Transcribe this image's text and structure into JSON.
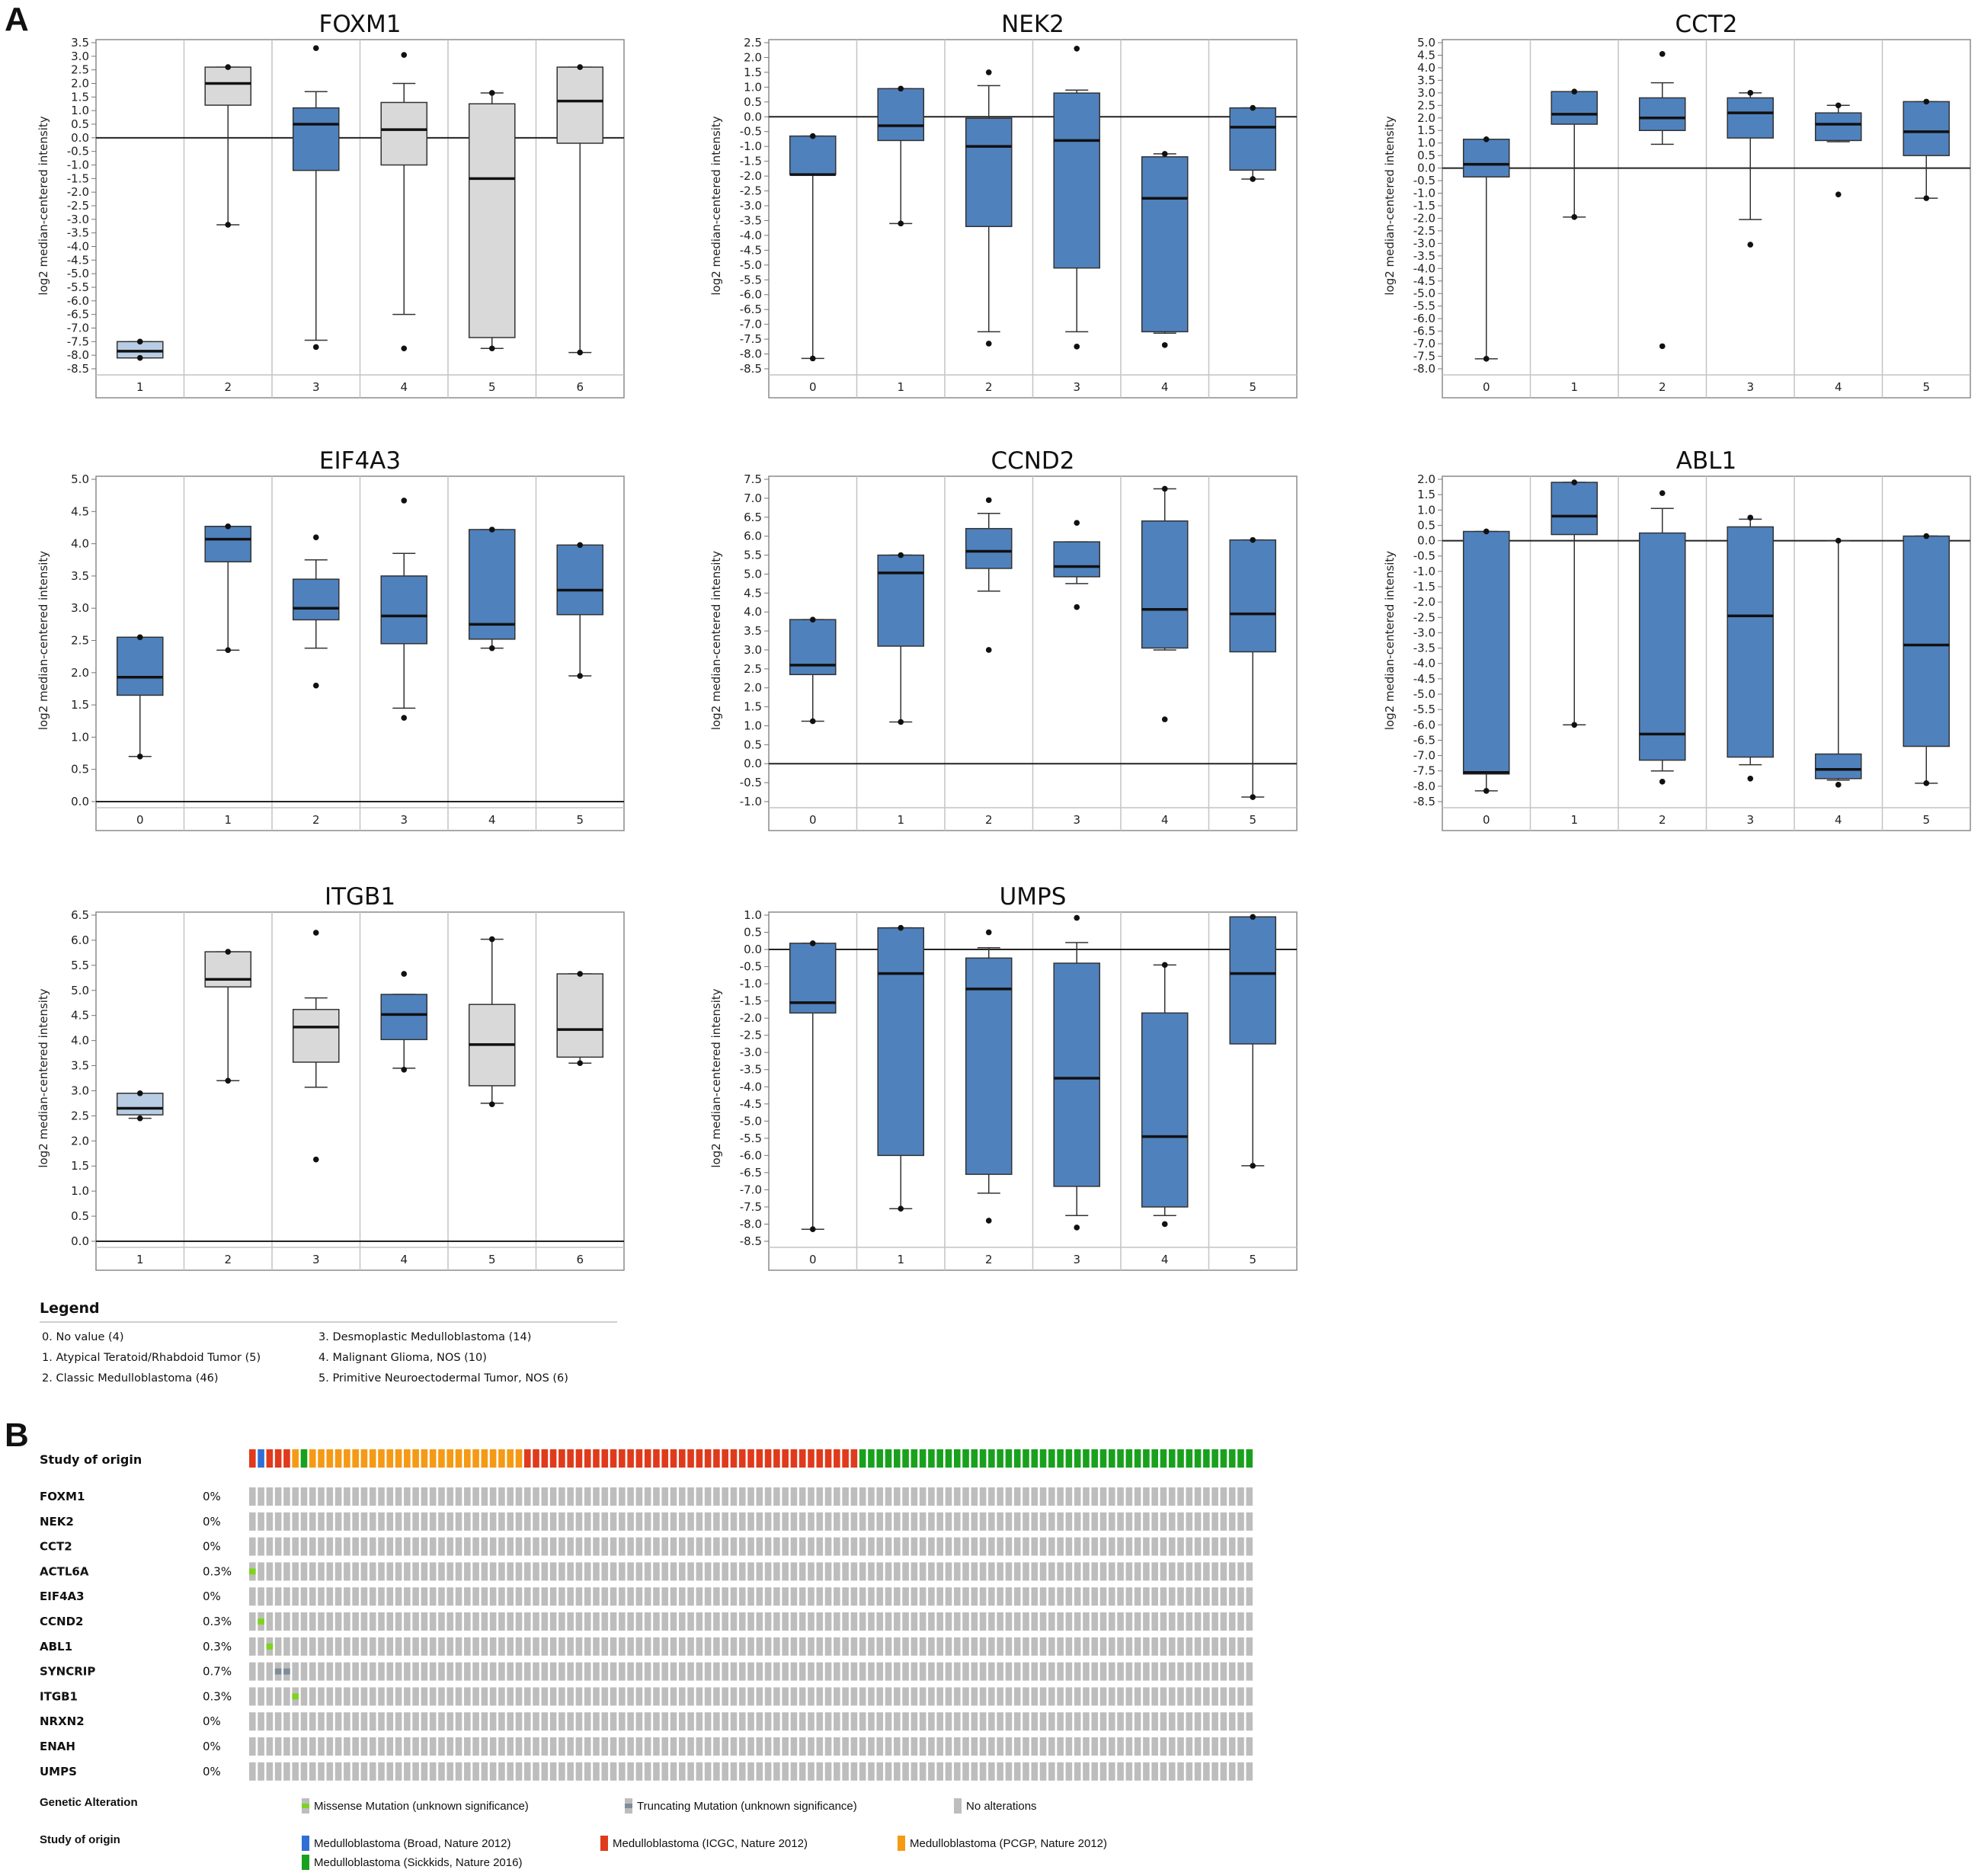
{
  "panel_a_label": "A",
  "panel_b_label": "B",
  "chart_data": [
    {
      "type": "box",
      "title": "FOXM1",
      "ylabel": "log2 median-centered intensity",
      "ylim": [
        -8.5,
        3.5
      ],
      "ytick_step": 0.5,
      "zero_line": true,
      "categories": [
        "1",
        "2",
        "3",
        "4",
        "5",
        "6"
      ],
      "boxes": [
        {
          "min": -8.1,
          "q1": -8.1,
          "median": -7.85,
          "q3": -7.5,
          "max": -7.5,
          "outliers": [
            -8.1,
            -7.5
          ],
          "color": "#b8cce4"
        },
        {
          "min": -3.2,
          "q1": 1.2,
          "median": 2.0,
          "q3": 2.6,
          "max": 2.6,
          "outliers": [
            2.6,
            -3.2
          ],
          "color": "#d9d9d9"
        },
        {
          "min": -7.45,
          "q1": -1.2,
          "median": 0.5,
          "q3": 1.1,
          "max": 1.7,
          "outliers": [
            3.3,
            -7.7
          ],
          "color": "#4f81bd"
        },
        {
          "min": -6.5,
          "q1": -1.0,
          "median": 0.3,
          "q3": 1.3,
          "max": 2.0,
          "outliers": [
            3.05,
            -7.75
          ],
          "color": "#d9d9d9"
        },
        {
          "min": -7.75,
          "q1": -7.35,
          "median": -1.5,
          "q3": 1.25,
          "max": 1.65,
          "outliers": [
            1.65,
            -7.75
          ],
          "color": "#d9d9d9"
        },
        {
          "min": -7.9,
          "q1": -0.2,
          "median": 1.35,
          "q3": 2.6,
          "max": 2.6,
          "outliers": [
            2.6,
            -7.9
          ],
          "color": "#d9d9d9"
        }
      ]
    },
    {
      "type": "box",
      "title": "NEK2",
      "ylabel": "log2 median-centered intensity",
      "ylim": [
        -8.5,
        2.5
      ],
      "ytick_step": 0.5,
      "zero_line": true,
      "categories": [
        "0",
        "1",
        "2",
        "3",
        "4",
        "5"
      ],
      "boxes": [
        {
          "min": -8.15,
          "q1": -1.95,
          "median": -1.95,
          "q3": -0.65,
          "max": -0.65,
          "outliers": [
            -0.65,
            -8.15
          ],
          "color": "#4f81bd"
        },
        {
          "min": -3.6,
          "q1": -0.8,
          "median": -0.3,
          "q3": 0.95,
          "max": 0.95,
          "outliers": [
            0.95,
            -3.6
          ],
          "color": "#4f81bd"
        },
        {
          "min": -7.25,
          "q1": -3.7,
          "median": -1.0,
          "q3": -0.05,
          "max": 1.05,
          "outliers": [
            1.5,
            -7.65
          ],
          "color": "#4f81bd"
        },
        {
          "min": -7.25,
          "q1": -5.1,
          "median": -0.8,
          "q3": 0.8,
          "max": 0.9,
          "outliers": [
            2.3,
            -7.75
          ],
          "color": "#4f81bd"
        },
        {
          "min": -7.3,
          "q1": -7.25,
          "median": -2.75,
          "q3": -1.35,
          "max": -1.25,
          "outliers": [
            -1.25,
            -7.7
          ],
          "color": "#4f81bd"
        },
        {
          "min": -2.1,
          "q1": -1.8,
          "median": -0.35,
          "q3": 0.3,
          "max": 0.3,
          "outliers": [
            0.3,
            -2.1
          ],
          "color": "#4f81bd"
        }
      ]
    },
    {
      "type": "box",
      "title": "CCT2",
      "ylabel": "log2 median-centered intensity",
      "ylim": [
        -8.0,
        5.0
      ],
      "ytick_step": 0.5,
      "zero_line": true,
      "categories": [
        "0",
        "1",
        "2",
        "3",
        "4",
        "5"
      ],
      "boxes": [
        {
          "min": -7.6,
          "q1": -0.35,
          "median": 0.15,
          "q3": 1.15,
          "max": 1.15,
          "outliers": [
            1.15,
            -7.6
          ],
          "color": "#4f81bd"
        },
        {
          "min": -1.95,
          "q1": 1.75,
          "median": 2.15,
          "q3": 3.05,
          "max": 3.05,
          "outliers": [
            3.05,
            -1.95
          ],
          "color": "#4f81bd"
        },
        {
          "min": 0.95,
          "q1": 1.5,
          "median": 2.0,
          "q3": 2.8,
          "max": 3.4,
          "outliers": [
            4.55,
            -7.1
          ],
          "color": "#4f81bd"
        },
        {
          "min": -2.05,
          "q1": 1.2,
          "median": 2.2,
          "q3": 2.8,
          "max": 3.0,
          "outliers": [
            3.0,
            -3.05
          ],
          "color": "#4f81bd"
        },
        {
          "min": 1.05,
          "q1": 1.1,
          "median": 1.75,
          "q3": 2.2,
          "max": 2.5,
          "outliers": [
            2.5,
            -1.05
          ],
          "color": "#4f81bd"
        },
        {
          "min": -1.2,
          "q1": 0.5,
          "median": 1.45,
          "q3": 2.65,
          "max": 2.65,
          "outliers": [
            2.65,
            -1.2
          ],
          "color": "#4f81bd"
        }
      ]
    },
    {
      "type": "box",
      "title": "EIF4A3",
      "ylabel": "log2 median-centered intensity",
      "ylim": [
        0.0,
        5.0
      ],
      "ytick_step": 0.5,
      "zero_line": true,
      "categories": [
        "0",
        "1",
        "2",
        "3",
        "4",
        "5"
      ],
      "boxes": [
        {
          "min": 0.7,
          "q1": 1.65,
          "median": 1.93,
          "q3": 2.55,
          "max": 2.55,
          "outliers": [
            2.55,
            0.7
          ],
          "color": "#4f81bd"
        },
        {
          "min": 2.35,
          "q1": 3.72,
          "median": 4.07,
          "q3": 4.27,
          "max": 4.27,
          "outliers": [
            4.27,
            2.35
          ],
          "color": "#4f81bd"
        },
        {
          "min": 2.38,
          "q1": 2.82,
          "median": 3.0,
          "q3": 3.45,
          "max": 3.75,
          "outliers": [
            4.1,
            1.8
          ],
          "color": "#4f81bd"
        },
        {
          "min": 1.45,
          "q1": 2.45,
          "median": 2.88,
          "q3": 3.5,
          "max": 3.85,
          "outliers": [
            4.67,
            1.3
          ],
          "color": "#4f81bd"
        },
        {
          "min": 2.38,
          "q1": 2.52,
          "median": 2.75,
          "q3": 4.22,
          "max": 4.22,
          "outliers": [
            4.22,
            2.38
          ],
          "color": "#4f81bd"
        },
        {
          "min": 1.95,
          "q1": 2.9,
          "median": 3.28,
          "q3": 3.98,
          "max": 3.98,
          "outliers": [
            3.98,
            1.95
          ],
          "color": "#4f81bd"
        }
      ]
    },
    {
      "type": "box",
      "title": "CCND2",
      "ylabel": "log2 median-centered intensity",
      "ylim": [
        -1.0,
        7.5
      ],
      "ytick_step": 0.5,
      "zero_line": true,
      "categories": [
        "0",
        "1",
        "2",
        "3",
        "4",
        "5"
      ],
      "boxes": [
        {
          "min": 1.12,
          "q1": 2.35,
          "median": 2.6,
          "q3": 3.8,
          "max": 3.8,
          "outliers": [
            3.8,
            1.12
          ],
          "color": "#4f81bd"
        },
        {
          "min": 1.1,
          "q1": 3.1,
          "median": 5.03,
          "q3": 5.5,
          "max": 5.5,
          "outliers": [
            5.5,
            1.1
          ],
          "color": "#4f81bd"
        },
        {
          "min": 4.55,
          "q1": 5.15,
          "median": 5.6,
          "q3": 6.2,
          "max": 6.6,
          "outliers": [
            6.95,
            3.0
          ],
          "color": "#4f81bd"
        },
        {
          "min": 4.75,
          "q1": 4.93,
          "median": 5.2,
          "q3": 5.85,
          "max": 5.85,
          "outliers": [
            6.35,
            4.13
          ],
          "color": "#4f81bd"
        },
        {
          "min": 3.0,
          "q1": 3.05,
          "median": 4.07,
          "q3": 6.4,
          "max": 7.25,
          "outliers": [
            7.25,
            1.17
          ],
          "color": "#4f81bd"
        },
        {
          "min": -0.88,
          "q1": 2.95,
          "median": 3.95,
          "q3": 5.9,
          "max": 5.9,
          "outliers": [
            5.9,
            -0.88
          ],
          "color": "#4f81bd"
        }
      ]
    },
    {
      "type": "box",
      "title": "ABL1",
      "ylabel": "log2 median-centered intensity",
      "ylim": [
        -8.5,
        2.0
      ],
      "ytick_step": 0.5,
      "zero_line": true,
      "categories": [
        "0",
        "1",
        "2",
        "3",
        "4",
        "5"
      ],
      "boxes": [
        {
          "min": -8.15,
          "q1": -7.6,
          "median": -7.55,
          "q3": 0.3,
          "max": 0.3,
          "outliers": [
            0.3,
            -8.15
          ],
          "color": "#4f81bd"
        },
        {
          "min": -6.0,
          "q1": 0.2,
          "median": 0.8,
          "q3": 1.9,
          "max": 1.9,
          "outliers": [
            1.9,
            -6.0
          ],
          "color": "#4f81bd"
        },
        {
          "min": -7.5,
          "q1": -7.15,
          "median": -6.3,
          "q3": 0.25,
          "max": 1.05,
          "outliers": [
            1.55,
            -7.85
          ],
          "color": "#4f81bd"
        },
        {
          "min": -7.3,
          "q1": -7.05,
          "median": -2.45,
          "q3": 0.45,
          "max": 0.7,
          "outliers": [
            0.75,
            -7.75
          ],
          "color": "#4f81bd"
        },
        {
          "min": -7.8,
          "q1": -7.75,
          "median": -7.45,
          "q3": -6.95,
          "max": 0.0,
          "outliers": [
            0.0,
            -7.95
          ],
          "color": "#4f81bd"
        },
        {
          "min": -7.9,
          "q1": -6.7,
          "median": -3.4,
          "q3": 0.15,
          "max": 0.15,
          "outliers": [
            0.15,
            -7.9
          ],
          "color": "#4f81bd"
        }
      ]
    },
    {
      "type": "box",
      "title": "ITGB1",
      "ylabel": "log2 median-centered intensity",
      "ylim": [
        0.0,
        6.5
      ],
      "ytick_step": 0.5,
      "zero_line": true,
      "categories": [
        "1",
        "2",
        "3",
        "4",
        "5",
        "6"
      ],
      "boxes": [
        {
          "min": 2.45,
          "q1": 2.52,
          "median": 2.65,
          "q3": 2.95,
          "max": 2.95,
          "outliers": [
            2.95,
            2.45
          ],
          "color": "#b8cce4"
        },
        {
          "min": 3.2,
          "q1": 5.07,
          "median": 5.22,
          "q3": 5.77,
          "max": 5.77,
          "outliers": [
            5.77,
            3.2
          ],
          "color": "#d9d9d9"
        },
        {
          "min": 3.07,
          "q1": 3.57,
          "median": 4.27,
          "q3": 4.62,
          "max": 4.85,
          "outliers": [
            6.15,
            1.63
          ],
          "color": "#d9d9d9"
        },
        {
          "min": 3.45,
          "q1": 4.02,
          "median": 4.52,
          "q3": 4.92,
          "max": 4.92,
          "outliers": [
            5.33,
            3.42
          ],
          "color": "#4f81bd"
        },
        {
          "min": 2.75,
          "q1": 3.1,
          "median": 3.92,
          "q3": 4.72,
          "max": 6.02,
          "outliers": [
            6.02,
            2.73
          ],
          "color": "#d9d9d9"
        },
        {
          "min": 3.55,
          "q1": 3.67,
          "median": 4.22,
          "q3": 5.33,
          "max": 5.33,
          "outliers": [
            5.33,
            3.55
          ],
          "color": "#d9d9d9"
        }
      ]
    },
    {
      "type": "box",
      "title": "UMPS",
      "ylabel": "log2 median-centered intensity",
      "ylim": [
        -8.5,
        1.0
      ],
      "ytick_step": 0.5,
      "zero_line": true,
      "categories": [
        "0",
        "1",
        "2",
        "3",
        "4",
        "5"
      ],
      "boxes": [
        {
          "min": -8.15,
          "q1": -1.85,
          "median": -1.55,
          "q3": 0.18,
          "max": 0.18,
          "outliers": [
            0.18,
            -8.15
          ],
          "color": "#4f81bd"
        },
        {
          "min": -7.55,
          "q1": -6.0,
          "median": -0.7,
          "q3": 0.63,
          "max": 0.63,
          "outliers": [
            0.63,
            -7.55
          ],
          "color": "#4f81bd"
        },
        {
          "min": -7.1,
          "q1": -6.55,
          "median": -1.15,
          "q3": -0.25,
          "max": 0.05,
          "outliers": [
            0.5,
            -7.9
          ],
          "color": "#4f81bd"
        },
        {
          "min": -7.75,
          "q1": -6.9,
          "median": -3.75,
          "q3": -0.4,
          "max": 0.2,
          "outliers": [
            0.92,
            -8.1
          ],
          "color": "#4f81bd"
        },
        {
          "min": -7.75,
          "q1": -7.5,
          "median": -5.45,
          "q3": -1.85,
          "max": -0.45,
          "outliers": [
            -0.45,
            -8.0
          ],
          "color": "#4f81bd"
        },
        {
          "min": -6.3,
          "q1": -2.75,
          "median": -0.7,
          "q3": 0.95,
          "max": 0.95,
          "outliers": [
            0.95,
            -6.3
          ],
          "color": "#4f81bd"
        }
      ]
    }
  ],
  "legend": {
    "title": "Legend",
    "items": [
      "0. No value (4)",
      "1. Atypical Teratoid/Rhabdoid Tumor (5)",
      "2. Classic Medulloblastoma (46)",
      "3. Desmoplastic Medulloblastoma (14)",
      "4. Malignant Glioma, NOS (10)",
      "5. Primitive Neuroectodermal Tumor, NOS (6)"
    ]
  },
  "oncoprint": {
    "study_track_label": "Study of origin",
    "colors": {
      "broad": "#2f6fd6",
      "icgc": "#e03a1c",
      "pcgp": "#f59a15",
      "sickkids": "#19a11e",
      "none": "#bdbdbd",
      "missense": "#7ed321",
      "truncating": "#7f8c99"
    },
    "sample_study": {
      "icgc_a": 1,
      "broad": 1,
      "icgc_b": 3,
      "pcgp_a": 1,
      "sickkids_a": 1,
      "pcgp_b": 25,
      "icgc_c": 39,
      "sickkids_b": 46
    },
    "genes": [
      {
        "name": "FOXM1",
        "pct": "0%",
        "alterations": []
      },
      {
        "name": "NEK2",
        "pct": "0%",
        "alterations": []
      },
      {
        "name": "CCT2",
        "pct": "0%",
        "alterations": []
      },
      {
        "name": "ACTL6A",
        "pct": "0.3%",
        "alterations": [
          {
            "sample": 0,
            "type": "missense"
          }
        ]
      },
      {
        "name": "EIF4A3",
        "pct": "0%",
        "alterations": []
      },
      {
        "name": "CCND2",
        "pct": "0.3%",
        "alterations": [
          {
            "sample": 1,
            "type": "missense"
          }
        ]
      },
      {
        "name": "ABL1",
        "pct": "0.3%",
        "alterations": [
          {
            "sample": 2,
            "type": "missense"
          }
        ]
      },
      {
        "name": "SYNCRIP",
        "pct": "0.7%",
        "alterations": [
          {
            "sample": 3,
            "type": "truncating"
          },
          {
            "sample": 4,
            "type": "truncating"
          }
        ]
      },
      {
        "name": "ITGB1",
        "pct": "0.3%",
        "alterations": [
          {
            "sample": 5,
            "type": "missense"
          }
        ]
      },
      {
        "name": "NRXN2",
        "pct": "0%",
        "alterations": []
      },
      {
        "name": "ENAH",
        "pct": "0%",
        "alterations": []
      },
      {
        "name": "UMPS",
        "pct": "0%",
        "alterations": []
      }
    ],
    "genetic_alteration_label": "Genetic Alteration",
    "alteration_keys": [
      "Missense Mutation (unknown significance)",
      "Truncating Mutation (unknown significance)",
      "No alterations"
    ],
    "study_key_label": "Study of origin",
    "study_keys": [
      "Medulloblastoma (Broad, Nature 2012)",
      "Medulloblastoma (ICGC, Nature 2012)",
      "Medulloblastoma (PCGP, Nature 2012)",
      "Medulloblastoma (Sickkids, Nature 2016)"
    ]
  }
}
